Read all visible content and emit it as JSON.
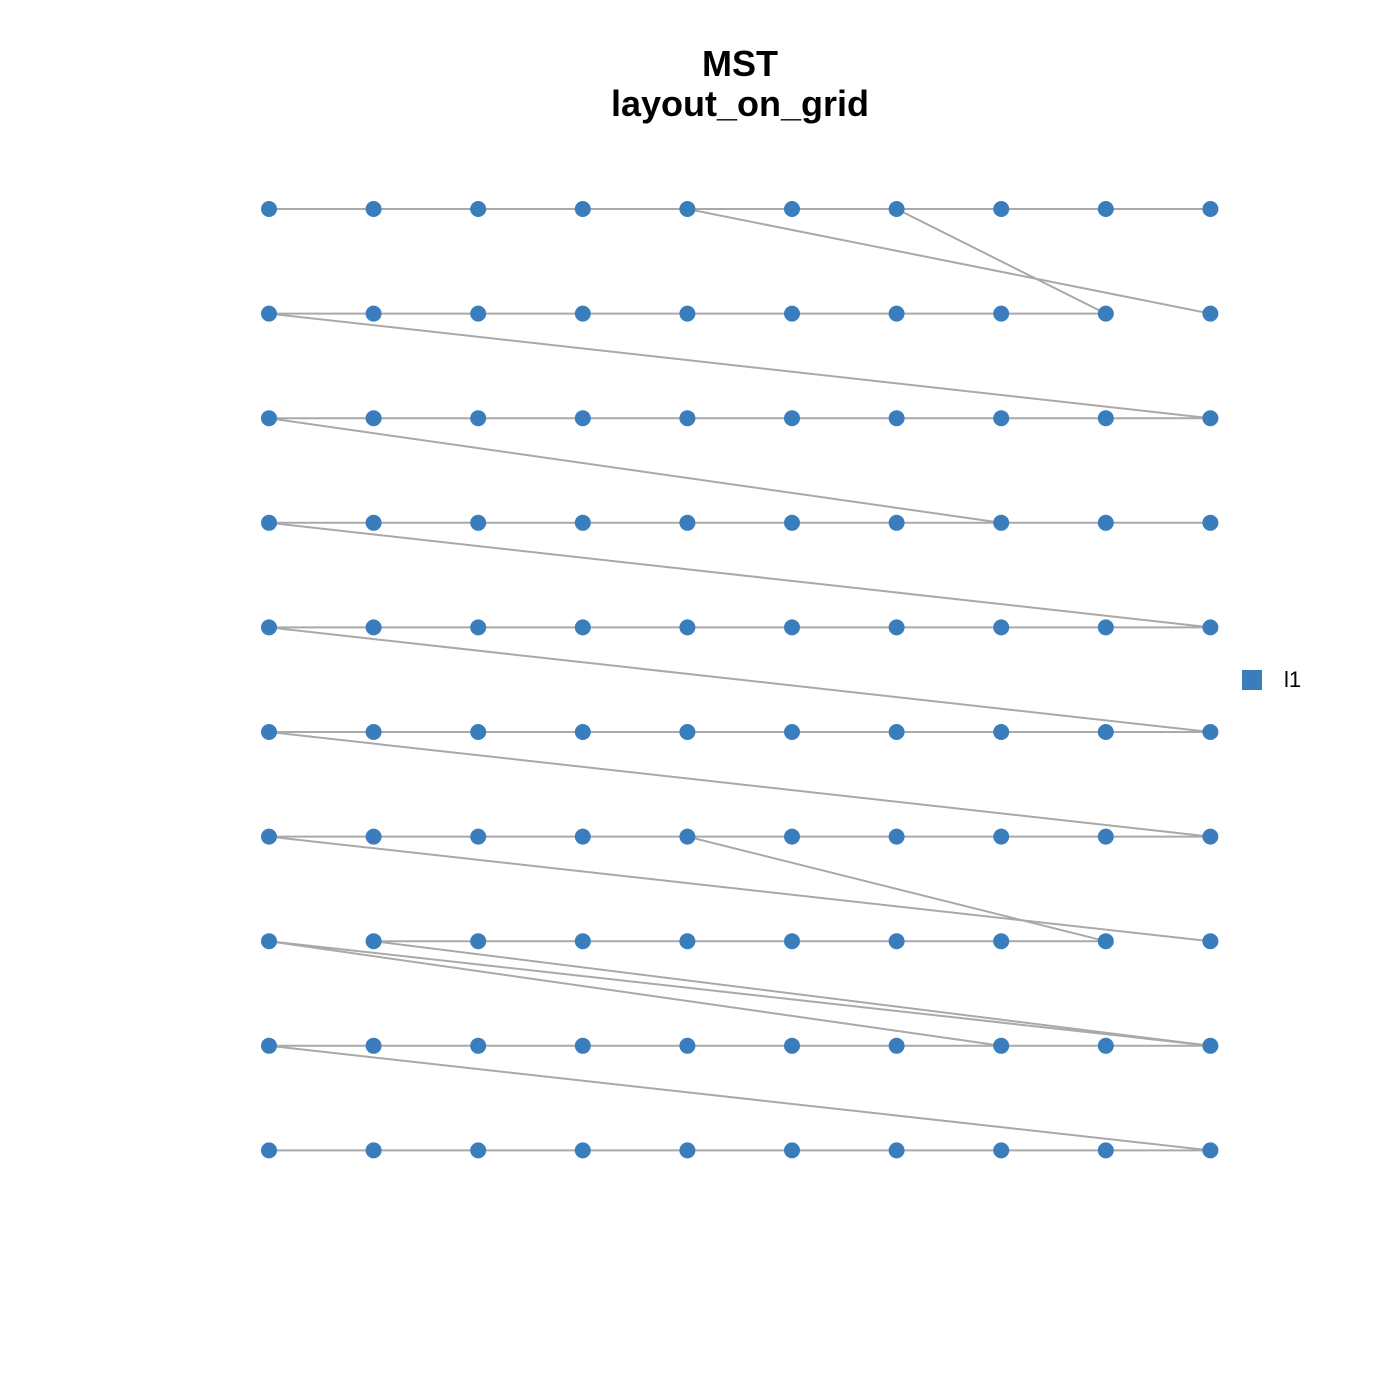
{
  "title": "MST",
  "subtitle": "layout_on_grid",
  "node_color": "#3a7dbd",
  "edge_color": "#a9a9a9",
  "legend": {
    "label": "l1",
    "color": "#3a7dbd"
  },
  "edges": [
    [
      0,
      1
    ],
    [
      1,
      2
    ],
    [
      2,
      3
    ],
    [
      3,
      4
    ],
    [
      4,
      5
    ],
    [
      5,
      6
    ],
    [
      6,
      7
    ],
    [
      7,
      8
    ],
    [
      8,
      9
    ],
    [
      4,
      19
    ],
    [
      6,
      18
    ],
    [
      10,
      11
    ],
    [
      11,
      12
    ],
    [
      12,
      13
    ],
    [
      13,
      14
    ],
    [
      14,
      15
    ],
    [
      15,
      16
    ],
    [
      16,
      17
    ],
    [
      17,
      18
    ],
    [
      10,
      29
    ],
    [
      20,
      21
    ],
    [
      21,
      22
    ],
    [
      22,
      23
    ],
    [
      23,
      24
    ],
    [
      24,
      25
    ],
    [
      25,
      26
    ],
    [
      26,
      27
    ],
    [
      27,
      28
    ],
    [
      28,
      29
    ],
    [
      20,
      37
    ],
    [
      30,
      31
    ],
    [
      31,
      32
    ],
    [
      32,
      33
    ],
    [
      33,
      34
    ],
    [
      34,
      35
    ],
    [
      35,
      36
    ],
    [
      36,
      37
    ],
    [
      37,
      38
    ],
    [
      38,
      39
    ],
    [
      30,
      49
    ],
    [
      40,
      41
    ],
    [
      41,
      42
    ],
    [
      42,
      43
    ],
    [
      43,
      44
    ],
    [
      44,
      45
    ],
    [
      45,
      46
    ],
    [
      46,
      47
    ],
    [
      47,
      48
    ],
    [
      48,
      49
    ],
    [
      40,
      59
    ],
    [
      50,
      51
    ],
    [
      51,
      52
    ],
    [
      52,
      53
    ],
    [
      53,
      54
    ],
    [
      54,
      55
    ],
    [
      55,
      56
    ],
    [
      56,
      57
    ],
    [
      57,
      58
    ],
    [
      58,
      59
    ],
    [
      50,
      69
    ],
    [
      60,
      61
    ],
    [
      61,
      62
    ],
    [
      62,
      63
    ],
    [
      63,
      64
    ],
    [
      64,
      65
    ],
    [
      65,
      66
    ],
    [
      66,
      67
    ],
    [
      67,
      68
    ],
    [
      68,
      69
    ],
    [
      60,
      79
    ],
    [
      64,
      78
    ],
    [
      71,
      72
    ],
    [
      72,
      73
    ],
    [
      73,
      74
    ],
    [
      74,
      75
    ],
    [
      75,
      76
    ],
    [
      76,
      77
    ],
    [
      77,
      78
    ],
    [
      70,
      87
    ],
    [
      70,
      89
    ],
    [
      71,
      89
    ],
    [
      80,
      81
    ],
    [
      81,
      82
    ],
    [
      82,
      83
    ],
    [
      83,
      84
    ],
    [
      84,
      85
    ],
    [
      85,
      86
    ],
    [
      86,
      87
    ],
    [
      87,
      88
    ],
    [
      88,
      89
    ],
    [
      80,
      99
    ],
    [
      90,
      91
    ],
    [
      91,
      92
    ],
    [
      92,
      93
    ],
    [
      93,
      94
    ],
    [
      94,
      95
    ],
    [
      95,
      96
    ],
    [
      96,
      97
    ],
    [
      97,
      98
    ],
    [
      98,
      99
    ]
  ]
}
